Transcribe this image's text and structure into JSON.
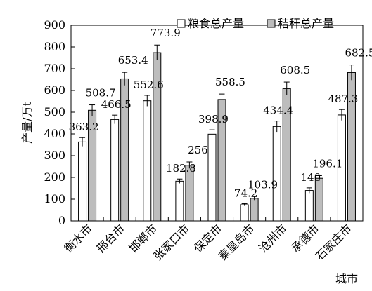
{
  "chart_data": {
    "type": "bar",
    "xlabel": "城市",
    "ylabel": "产量/万t",
    "ylim": [
      0,
      900
    ],
    "yticks": [
      0,
      100,
      200,
      300,
      400,
      500,
      600,
      700,
      800,
      900
    ],
    "grid": false,
    "legend_position": "top-right",
    "error_bars": true,
    "categories": [
      "衡水市",
      "邢台市",
      "邯郸市",
      "张家口市",
      "保定市",
      "秦皇岛市",
      "沧州市",
      "承德市",
      "石家庄市"
    ],
    "series": [
      {
        "name": "粮食总产量",
        "color": "#ffffff",
        "values": [
          363.2,
          466.5,
          552.6,
          182.8,
          398.9,
          74.2,
          434.4,
          140,
          487.3
        ],
        "errors": [
          20,
          20,
          25,
          10,
          20,
          5,
          25,
          12,
          25
        ],
        "labels": [
          "363.2",
          "466.5",
          "552.6",
          "182.8",
          "398.9",
          "74.2",
          "434.4",
          "140",
          "487.3"
        ]
      },
      {
        "name": "秸秆总产量",
        "color": "#bdbdbd",
        "values": [
          508.7,
          653.4,
          773.9,
          256,
          558.5,
          103.9,
          608.5,
          196.1,
          682.5
        ],
        "errors": [
          25,
          30,
          35,
          15,
          25,
          8,
          30,
          12,
          35
        ],
        "labels": [
          "508.7",
          "653.4",
          "773.9",
          "256",
          "558.5",
          "103.9",
          "608.5",
          "196.1",
          "682.5"
        ]
      }
    ]
  }
}
